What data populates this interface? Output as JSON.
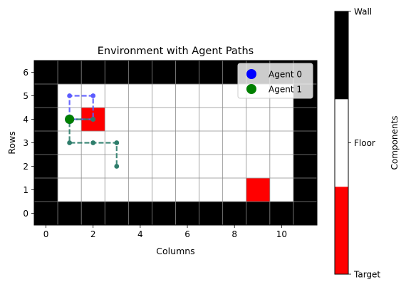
{
  "chart_data": {
    "type": "heatmap",
    "title": "Environment with Agent Paths",
    "xlabel": "Columns",
    "ylabel": "Rows",
    "grid": true,
    "legend_placement": "top-right",
    "xlim": [
      -0.5,
      11.5
    ],
    "ylim": [
      -0.5,
      6.5
    ],
    "x_ticks": [
      0,
      2,
      4,
      6,
      8,
      10
    ],
    "y_ticks": [
      0,
      1,
      2,
      3,
      4,
      5,
      6
    ],
    "grid_rows": 7,
    "grid_cols": 12,
    "targets": [
      {
        "x": 2,
        "y": 4
      },
      {
        "x": 9,
        "y": 1
      }
    ],
    "series": [
      {
        "name": "Agent 0",
        "color": "#0000ff",
        "path_color": "#5b5bff",
        "path": [
          [
            1,
            4
          ],
          [
            1,
            5
          ],
          [
            2,
            5
          ],
          [
            2,
            4
          ],
          [
            1,
            4
          ]
        ]
      },
      {
        "name": "Agent 1",
        "color": "#008000",
        "path_color": "#2e7d6b",
        "path": [
          [
            1,
            4
          ],
          [
            2,
            4
          ],
          [
            1,
            4
          ],
          [
            1,
            3
          ],
          [
            2,
            3
          ],
          [
            3,
            3
          ],
          [
            3,
            2
          ]
        ]
      }
    ],
    "start": {
      "x": 1,
      "y": 4
    },
    "colorbar": {
      "label": "Components",
      "ticks": [
        "Target",
        "Floor",
        "Wall"
      ],
      "colors": [
        "#ff0000",
        "#ffffff",
        "#000000"
      ]
    }
  }
}
